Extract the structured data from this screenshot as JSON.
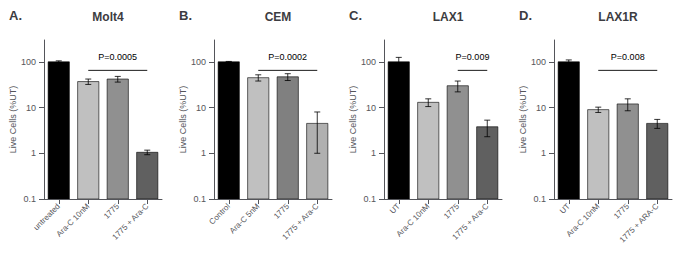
{
  "chart_data": [
    {
      "type": "bar",
      "title": "Molt4",
      "panel_label": "A.",
      "categories": [
        "untreated",
        "Ara-C 10nM",
        "1775",
        "1775 + Ara-C"
      ],
      "values": [
        100,
        37,
        42,
        1.05
      ],
      "errors": [
        5,
        5,
        6,
        0.12
      ],
      "colors": [
        "#000000",
        "#c0c0c0",
        "#909090",
        "#606060"
      ],
      "annotations": [
        {
          "text": "P=0.0005",
          "from": "Ara-C 10nM",
          "to": "1775 + Ara-C",
          "y": 65
        }
      ],
      "ylabel": "Live Cells (%UT)",
      "log": "y",
      "ylim": [
        0.1,
        300
      ],
      "yticks": [
        0.1,
        1,
        10,
        100
      ],
      "grid": false
    },
    {
      "type": "bar",
      "title": "CEM",
      "panel_label": "B.",
      "categories": [
        "Control",
        "Ara-C 5nM",
        "1775",
        "1775 + Ara-C"
      ],
      "values": [
        100,
        45,
        47,
        4.5
      ],
      "errors": [
        2,
        7,
        8,
        3.5
      ],
      "colors": [
        "#000000",
        "#c0c0c0",
        "#808080",
        "#b0b0b0"
      ],
      "annotations": [
        {
          "text": "P=0.0002",
          "from": "Ara-C 5nM",
          "to": "1775 + Ara-C",
          "y": 65
        }
      ],
      "ylabel": "Live Cells (%UT)",
      "log": "y",
      "ylim": [
        0.1,
        300
      ],
      "yticks": [
        0.1,
        1,
        10,
        100
      ],
      "grid": false
    },
    {
      "type": "bar",
      "title": "LAX1",
      "panel_label": "C.",
      "categories": [
        "UT",
        "Ara-C 10nM",
        "1775",
        "1775 + Ara-C"
      ],
      "values": [
        100,
        13,
        30,
        3.8
      ],
      "errors": [
        25,
        2.5,
        8,
        1.5
      ],
      "colors": [
        "#000000",
        "#c0c0c0",
        "#909090",
        "#606060"
      ],
      "annotations": [
        {
          "text": "P=0.009",
          "from": "1775",
          "to": "1775 + Ara-C",
          "y": 65
        }
      ],
      "ylabel": "Live Cells (%UT)",
      "log": "y",
      "ylim": [
        0.1,
        300
      ],
      "yticks": [
        0.1,
        1,
        10,
        100
      ],
      "grid": false
    },
    {
      "type": "bar",
      "title": "LAX1R",
      "panel_label": "D.",
      "categories": [
        "UT",
        "Ara-C 10nM",
        "1775",
        "1775 + ARA-C"
      ],
      "values": [
        100,
        9,
        12,
        4.5
      ],
      "errors": [
        10,
        1.2,
        3.5,
        1.0
      ],
      "colors": [
        "#000000",
        "#c0c0c0",
        "#909090",
        "#606060"
      ],
      "annotations": [
        {
          "text": "P=0.008",
          "from": "Ara-C 10nM",
          "to": "1775 + ARA-C",
          "y": 65
        }
      ],
      "ylabel": "Live Cells (%UT)",
      "log": "y",
      "ylim": [
        0.1,
        300
      ],
      "yticks": [
        0.1,
        1,
        10,
        100
      ],
      "grid": false
    }
  ]
}
